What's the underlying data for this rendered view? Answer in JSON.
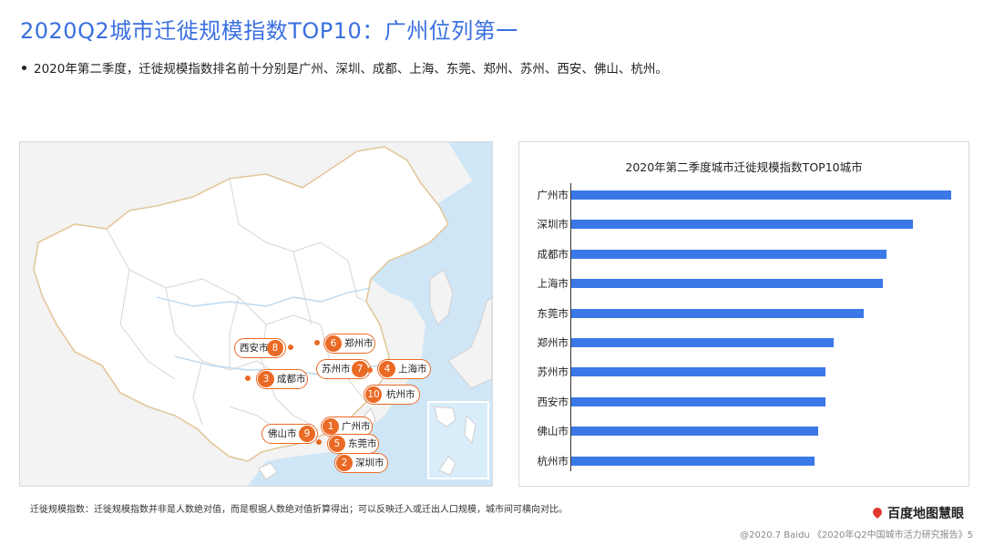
{
  "header": {
    "title": "2020Q2城市迁徙规模指数TOP10：广州位列第一",
    "bullet": "2020年第二季度，迁徙规模指数排名前十分别是广州、深圳、成都、上海、东莞、郑州、苏州、西安、佛山、杭州。"
  },
  "map": {
    "city_labels": [
      {
        "rank": "1",
        "name": "广州市"
      },
      {
        "rank": "2",
        "name": "深圳市"
      },
      {
        "rank": "3",
        "name": "成都市"
      },
      {
        "rank": "4",
        "name": "上海市"
      },
      {
        "rank": "5",
        "name": "东莞市"
      },
      {
        "rank": "6",
        "name": "郑州市"
      },
      {
        "rank": "7",
        "name": "苏州市"
      },
      {
        "rank": "8",
        "name": "西安市"
      },
      {
        "rank": "9",
        "name": "佛山市"
      },
      {
        "rank": "10",
        "name": "杭州市"
      }
    ]
  },
  "chart_data": {
    "type": "bar",
    "orientation": "horizontal",
    "title": "2020年第二季度城市迁徙规模指数TOP10城市",
    "categories": [
      "广州市",
      "深圳市",
      "成都市",
      "上海市",
      "东莞市",
      "郑州市",
      "苏州市",
      "西安市",
      "佛山市",
      "杭州市"
    ],
    "values": [
      100,
      90,
      83,
      82,
      77,
      69,
      67,
      67,
      65,
      64
    ],
    "value_scale": "relative, leading city = 100 (no axis ticks shown)",
    "xlabel": "",
    "ylabel": "",
    "grid": false,
    "bar_color": "#3b78e7"
  },
  "footer": {
    "footnote": "迁徙规模指数：迁徙规模指数并非是人数绝对值，而是根据人数绝对值折算得出；可以反映迁入或迁出人口规模，城市间可横向对比。",
    "brand": "百度地图慧眼",
    "source": "@2020.7 Baidu 《2020年Q2中国城市活力研究报告》5"
  },
  "colors": {
    "title": "#3a6fe0",
    "marker": "#ea6a25",
    "bar": "#3b78e7",
    "sea": "#cfe6f7",
    "land": "#ffffff"
  }
}
